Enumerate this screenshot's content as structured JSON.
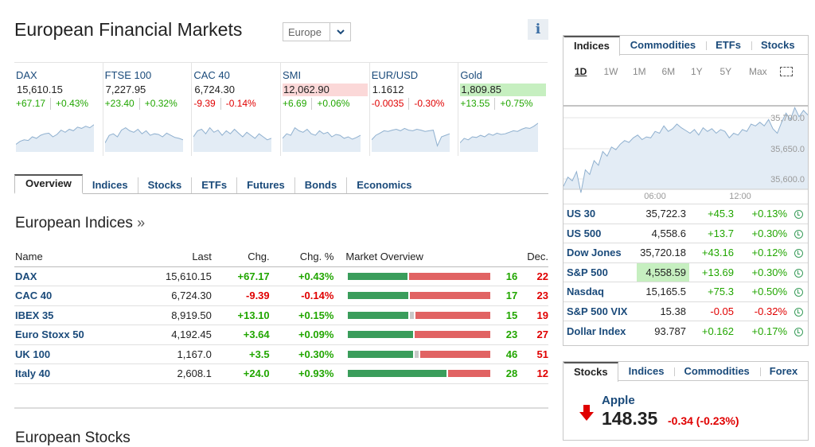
{
  "header": {
    "title": "European Financial Markets",
    "region": "Europe",
    "info_icon": "info-icon"
  },
  "quotes": [
    {
      "name": "DAX",
      "last": "15,610.15",
      "chg": "+67.17",
      "pct": "+0.43%",
      "dir": "up",
      "highlight": "",
      "spark": [
        0.25,
        0.35,
        0.4,
        0.38,
        0.5,
        0.45,
        0.55,
        0.6,
        0.62,
        0.5,
        0.58,
        0.72,
        0.65,
        0.75,
        0.7,
        0.82,
        0.78,
        0.85,
        0.8,
        0.9
      ]
    },
    {
      "name": "FTSE 100",
      "last": "7,227.95",
      "chg": "+23.40",
      "pct": "+0.32%",
      "dir": "up",
      "highlight": "",
      "spark": [
        0.3,
        0.55,
        0.6,
        0.5,
        0.72,
        0.8,
        0.7,
        0.65,
        0.75,
        0.6,
        0.7,
        0.55,
        0.6,
        0.58,
        0.5,
        0.62,
        0.55,
        0.48,
        0.45,
        0.4
      ]
    },
    {
      "name": "CAC 40",
      "last": "6,724.30",
      "chg": "-9.39",
      "pct": "-0.14%",
      "dir": "down",
      "highlight": "",
      "spark": [
        0.5,
        0.7,
        0.75,
        0.6,
        0.8,
        0.65,
        0.72,
        0.55,
        0.7,
        0.6,
        0.75,
        0.62,
        0.5,
        0.65,
        0.55,
        0.45,
        0.6,
        0.5,
        0.4,
        0.45
      ]
    },
    {
      "name": "SMI",
      "last": "12,062.90",
      "chg": "+6.69",
      "pct": "+0.06%",
      "dir": "up",
      "highlight": "red",
      "spark": [
        0.45,
        0.6,
        0.55,
        0.8,
        0.7,
        0.65,
        0.75,
        0.6,
        0.55,
        0.7,
        0.6,
        0.65,
        0.5,
        0.58,
        0.55,
        0.45,
        0.5,
        0.42,
        0.48,
        0.55
      ]
    },
    {
      "name": "EUR/USD",
      "last": "1.1612",
      "chg": "-0.0035",
      "pct": "-0.30%",
      "dir": "down",
      "highlight": "",
      "spark": [
        0.4,
        0.55,
        0.62,
        0.7,
        0.68,
        0.72,
        0.75,
        0.7,
        0.78,
        0.72,
        0.7,
        0.75,
        0.72,
        0.68,
        0.7,
        0.72,
        0.2,
        0.5,
        0.55,
        0.6
      ]
    },
    {
      "name": "Gold",
      "last": "1,809.85",
      "chg": "+13.55",
      "pct": "+0.75%",
      "dir": "up",
      "highlight": "green",
      "spark": [
        0.3,
        0.45,
        0.4,
        0.5,
        0.48,
        0.55,
        0.5,
        0.6,
        0.55,
        0.62,
        0.58,
        0.6,
        0.65,
        0.7,
        0.68,
        0.75,
        0.8,
        0.78,
        0.85,
        0.95
      ]
    }
  ],
  "main_tabs": [
    "Overview",
    "Indices",
    "Stocks",
    "ETFs",
    "Futures",
    "Bonds",
    "Economics"
  ],
  "indices_section": {
    "title": "European Indices",
    "chevron": "»"
  },
  "indices_table": {
    "headers": [
      "Name",
      "Last",
      "Chg.",
      "Chg. %",
      "Market Overview",
      "Dec."
    ],
    "rows": [
      {
        "name": "DAX",
        "last": "15,610.15",
        "chg": "+67.17",
        "pct": "+0.43%",
        "adv": "16",
        "dec": "22",
        "adv_n": 16,
        "unch_n": 0,
        "dec_n": 22,
        "dir": "up"
      },
      {
        "name": "CAC 40",
        "last": "6,724.30",
        "chg": "-9.39",
        "pct": "-0.14%",
        "adv": "17",
        "dec": "23",
        "adv_n": 17,
        "unch_n": 0,
        "dec_n": 23,
        "dir": "down"
      },
      {
        "name": "IBEX 35",
        "last": "8,919.50",
        "chg": "+13.10",
        "pct": "+0.15%",
        "adv": "15",
        "dec": "19",
        "adv_n": 15,
        "unch_n": 1,
        "dec_n": 19,
        "dir": "up"
      },
      {
        "name": "Euro Stoxx 50",
        "last": "4,192.45",
        "chg": "+3.64",
        "pct": "+0.09%",
        "adv": "23",
        "dec": "27",
        "adv_n": 23,
        "unch_n": 0,
        "dec_n": 27,
        "dir": "up"
      },
      {
        "name": "UK 100",
        "last": "1,167.0",
        "chg": "+3.5",
        "pct": "+0.30%",
        "adv": "46",
        "dec": "51",
        "adv_n": 46,
        "unch_n": 3,
        "dec_n": 51,
        "dir": "up"
      },
      {
        "name": "Italy 40",
        "last": "2,608.1",
        "chg": "+24.0",
        "pct": "+0.93%",
        "adv": "28",
        "dec": "12",
        "adv_n": 28,
        "unch_n": 0,
        "dec_n": 12,
        "dir": "up"
      }
    ]
  },
  "next_section": {
    "title": "European Stocks"
  },
  "right_panel": {
    "tabs": [
      "Indices",
      "Commodities",
      "ETFs",
      "Stocks"
    ],
    "ranges": [
      "1D",
      "1W",
      "1M",
      "6M",
      "1Y",
      "5Y",
      "Max"
    ],
    "chart": {
      "y_labels": [
        "35,700.0",
        "35,650.0",
        "35,600.0"
      ],
      "x_labels": [
        "06:00",
        "12:00"
      ],
      "series": [
        0.12,
        0.22,
        0.18,
        0.28,
        0.05,
        0.3,
        0.25,
        0.4,
        0.35,
        0.5,
        0.45,
        0.55,
        0.52,
        0.58,
        0.62,
        0.6,
        0.65,
        0.68,
        0.63,
        0.66,
        0.65,
        0.72,
        0.7,
        0.78,
        0.72,
        0.75,
        0.8,
        0.76,
        0.73,
        0.7,
        0.74,
        0.68,
        0.76,
        0.72,
        0.75,
        0.7,
        0.74,
        0.72,
        0.65,
        0.7,
        0.68,
        0.74,
        0.72,
        0.8,
        0.78,
        0.82,
        0.78,
        0.85,
        0.75,
        0.7,
        0.82,
        0.92,
        0.85,
        0.98,
        0.88,
        0.95,
        0.9
      ]
    },
    "rows": [
      {
        "name": "US 30",
        "last": "35,722.3",
        "chg": "+45.3",
        "pct": "+0.13%",
        "dir": "up",
        "hl": false
      },
      {
        "name": "US 500",
        "last": "4,558.6",
        "chg": "+13.7",
        "pct": "+0.30%",
        "dir": "up",
        "hl": false
      },
      {
        "name": "Dow Jones",
        "last": "35,720.18",
        "chg": "+43.16",
        "pct": "+0.12%",
        "dir": "up",
        "hl": false
      },
      {
        "name": "S&P 500",
        "last": "4,558.59",
        "chg": "+13.69",
        "pct": "+0.30%",
        "dir": "up",
        "hl": true
      },
      {
        "name": "Nasdaq",
        "last": "15,165.5",
        "chg": "+75.3",
        "pct": "+0.50%",
        "dir": "up",
        "hl": false
      },
      {
        "name": "S&P 500 VIX",
        "last": "15.38",
        "chg": "-0.05",
        "pct": "-0.32%",
        "dir": "down",
        "hl": false
      },
      {
        "name": "Dollar Index",
        "last": "93.787",
        "chg": "+0.162",
        "pct": "+0.17%",
        "dir": "up",
        "hl": false
      }
    ]
  },
  "right_panel2": {
    "tabs": [
      "Stocks",
      "Indices",
      "Commodities",
      "Forex"
    ],
    "stock": {
      "name": "Apple",
      "price": "148.35",
      "chg": "-0.34 (-0.23%)"
    }
  },
  "colors": {
    "up": "#21a600",
    "down": "#e00000",
    "link": "#1a4a7a",
    "adv_bar": "#3a9d5b",
    "dec_bar": "#e16363"
  }
}
